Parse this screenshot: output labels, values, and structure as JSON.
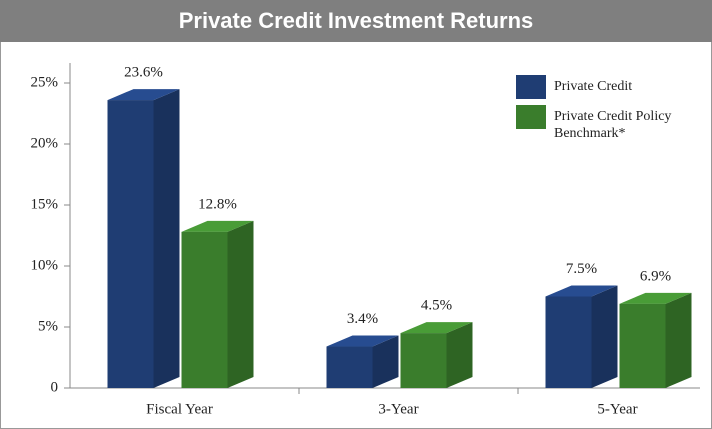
{
  "chart_data": {
    "type": "bar3d",
    "title": "Private Credit Investment Returns",
    "categories": [
      "Fiscal Year",
      "3-Year",
      "5-Year"
    ],
    "series": [
      {
        "name": "Private Credit",
        "color": "#1f3d73",
        "values": [
          23.6,
          3.4,
          7.5
        ],
        "value_labels": [
          "23.6%",
          "3.4%",
          "7.5%"
        ]
      },
      {
        "name": "Private Credit Policy Benchmark*",
        "color": "#3a7d2c",
        "values": [
          12.8,
          4.5,
          6.9
        ],
        "value_labels": [
          "12.8%",
          "4.5%",
          "6.9%"
        ]
      }
    ],
    "ylim": [
      0,
      25
    ],
    "yticks": [
      0,
      {
        "value": 5,
        "label": "5%"
      },
      {
        "value": 10,
        "label": "10%"
      },
      {
        "value": 15,
        "label": "15%"
      },
      {
        "value": 20,
        "label": "20%"
      },
      {
        "value": 25,
        "label": "25%"
      }
    ],
    "legend": "top-right"
  }
}
